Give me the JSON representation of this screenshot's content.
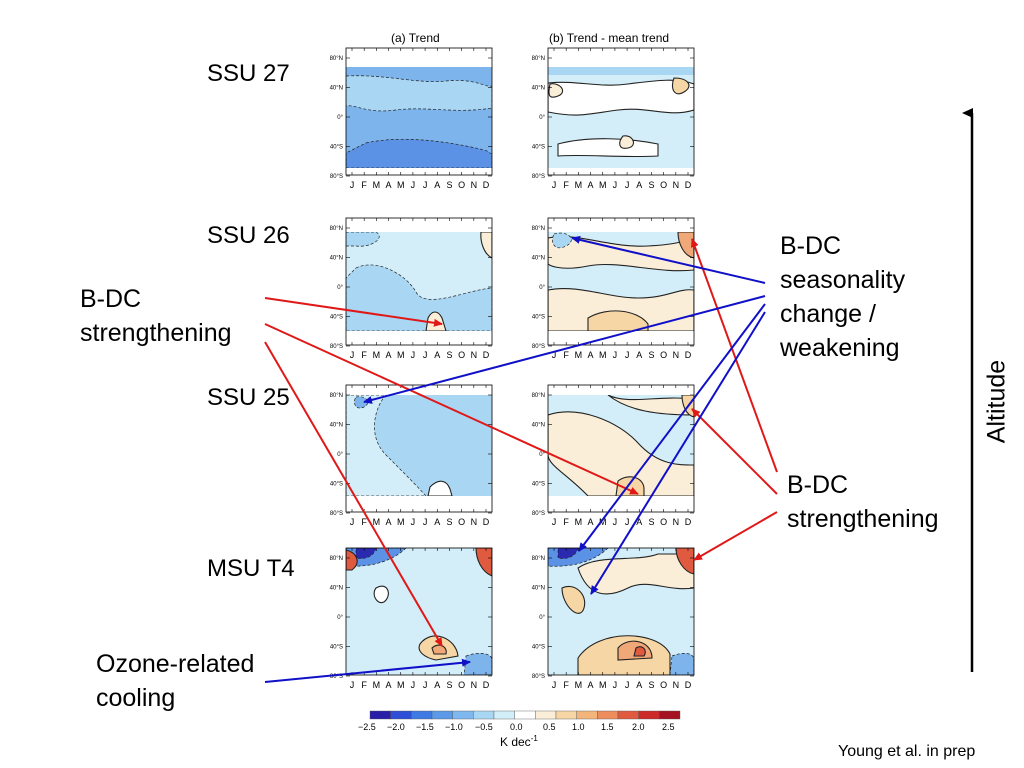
{
  "column_titles": [
    "(a) Trend",
    "(b) Trend - mean trend"
  ],
  "rows": [
    {
      "label": "SSU 27"
    },
    {
      "label": "SSU 26"
    },
    {
      "label": "SSU 25"
    },
    {
      "label": "MSU T4"
    }
  ],
  "lat_ticks": [
    "80°N",
    "40°N",
    "0°",
    "40°S",
    "80°S"
  ],
  "month_ticks": [
    "J",
    "F",
    "M",
    "A",
    "M",
    "J",
    "J",
    "A",
    "S",
    "O",
    "N",
    "D"
  ],
  "annotations": {
    "left_strengthening": [
      "B-DC",
      "strengthening"
    ],
    "right_seasonality": [
      "B-DC",
      "seasonality",
      "change /",
      "weakening"
    ],
    "right_strengthening": [
      "B-DC",
      "strengthening"
    ],
    "ozone": [
      "Ozone-related",
      "cooling"
    ]
  },
  "axis_label": "Altitude",
  "colorbar": {
    "ticks": [
      "−2.5",
      "−2.0",
      "−1.5",
      "−1.0",
      "−0.5",
      "0.0",
      "0.5",
      "1.0",
      "1.5",
      "2.0",
      "2.5"
    ],
    "unit": "K dec",
    "unit_exp": "-1",
    "colors": [
      "#2a1ea8",
      "#2f4fd6",
      "#3f79e3",
      "#5c9ae9",
      "#7fb8ee",
      "#a8d7f3",
      "#d2eef8",
      "#ffffff",
      "#fbeed8",
      "#f7d6a6",
      "#f3b57c",
      "#ed8c5c",
      "#e05a40",
      "#cc2b29",
      "#a51322"
    ]
  },
  "citation": "Young et al. in prep",
  "colors": {
    "red_arrow": "#e01818",
    "blue_arrow": "#1010c8"
  }
}
